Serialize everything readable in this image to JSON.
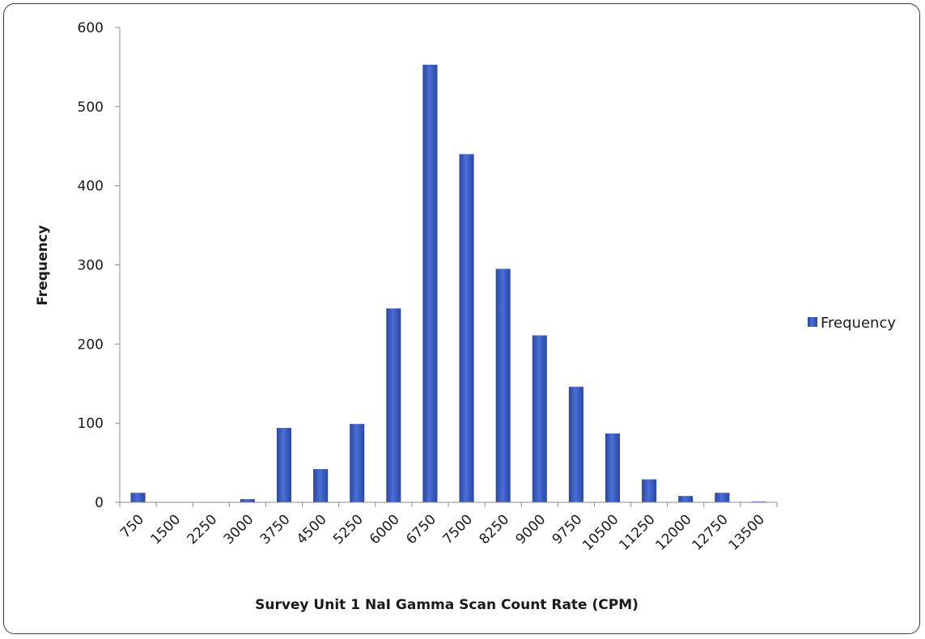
{
  "chart_data": {
    "type": "bar",
    "title": "",
    "xlabel": "Survey Unit 1 NaI Gamma Scan Count Rate (CPM)",
    "ylabel": "Frequency",
    "ylim": [
      0,
      600
    ],
    "yticks": [
      "0",
      "100",
      "200",
      "300",
      "400",
      "500",
      "600"
    ],
    "categories": [
      "750",
      "1500",
      "2250",
      "3000",
      "3750",
      "4500",
      "5250",
      "6000",
      "6750",
      "7500",
      "8250",
      "9000",
      "9750",
      "10500",
      "11250",
      "12000",
      "12750",
      "13500"
    ],
    "series": [
      {
        "name": "Frequency",
        "color": "#3555b8",
        "values": [
          12,
          0,
          0,
          4,
          94,
          42,
          99,
          245,
          553,
          440,
          295,
          211,
          146,
          87,
          29,
          8,
          12,
          1
        ]
      }
    ],
    "grid": false,
    "legend": "right"
  }
}
